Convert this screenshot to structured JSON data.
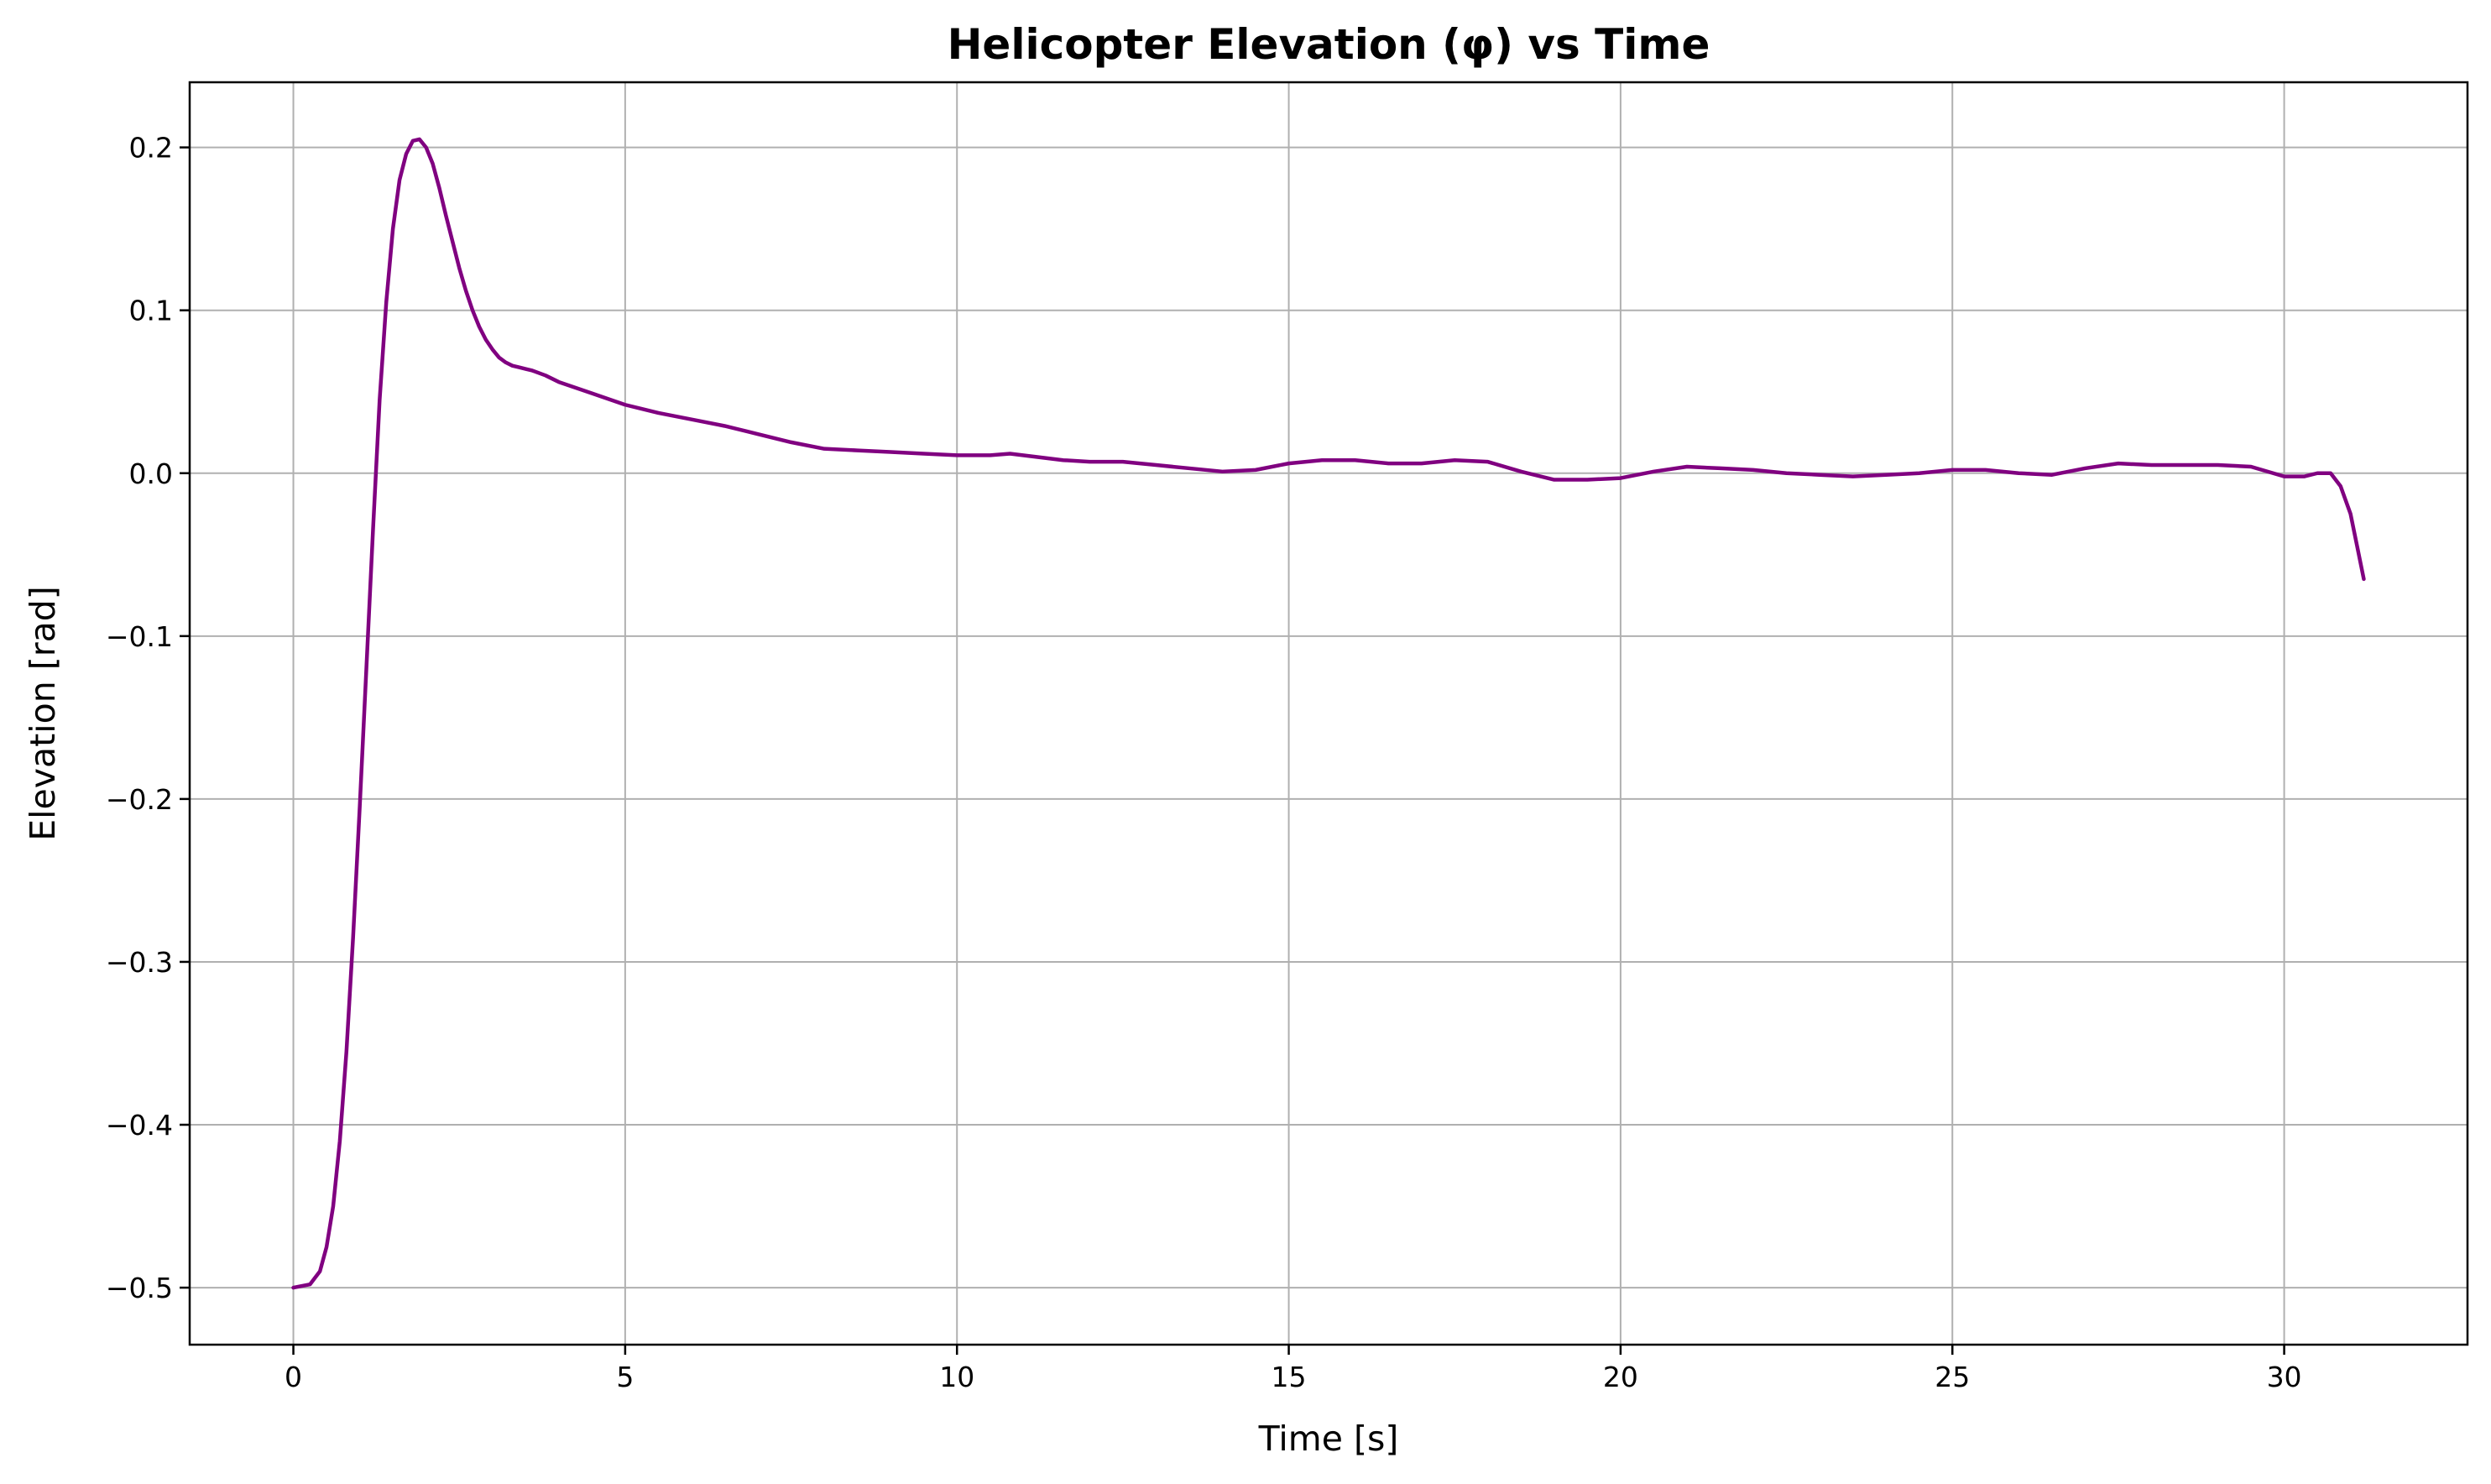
{
  "chart_data": {
    "type": "line",
    "title": "Helicopter Elevation (φ) vs Time",
    "xlabel": "Time [s]",
    "ylabel": "Elevation [rad]",
    "xlim": [
      -1.5625,
      32.7625
    ],
    "ylim": [
      -0.535,
      0.24
    ],
    "x_ticks": [
      0,
      5,
      10,
      15,
      20,
      25,
      30
    ],
    "x_tick_labels": [
      "0",
      "5",
      "10",
      "15",
      "20",
      "25",
      "30"
    ],
    "y_ticks": [
      0.2,
      0.1,
      0.0,
      -0.1,
      -0.2,
      -0.3,
      -0.4,
      -0.5
    ],
    "y_tick_labels": [
      "0.2",
      "0.1",
      "0.0",
      "−0.1",
      "−0.2",
      "−0.3",
      "−0.4",
      "−0.5"
    ],
    "grid": true,
    "colors": {
      "line": "#800080",
      "grid": "#b0b0b0",
      "axes": "#000000"
    },
    "series": [
      {
        "x": [
          0,
          0.25,
          0.4,
          0.5,
          0.6,
          0.7,
          0.8,
          0.9,
          1.0,
          1.1,
          1.2,
          1.3,
          1.4,
          1.5,
          1.6,
          1.7,
          1.8,
          1.9,
          2.0,
          2.1,
          2.2,
          2.3,
          2.4,
          2.5,
          2.6,
          2.7,
          2.8,
          2.9,
          3.0,
          3.1,
          3.2,
          3.3,
          3.4,
          3.5,
          3.6,
          3.8,
          4.0,
          4.5,
          5.0,
          5.5,
          6.0,
          6.5,
          7.0,
          7.5,
          8.0,
          8.5,
          9.0,
          9.5,
          10.0,
          10.5,
          10.8,
          11.2,
          11.6,
          12.0,
          12.5,
          13.0,
          13.5,
          14.0,
          14.5,
          15.0,
          15.5,
          16.0,
          16.5,
          17.0,
          17.5,
          18.0,
          18.5,
          19.0,
          19.5,
          20.0,
          20.5,
          21.0,
          21.5,
          22.0,
          22.5,
          23.0,
          23.5,
          24.0,
          24.5,
          25.0,
          25.5,
          26.0,
          26.5,
          27.0,
          27.5,
          28.0,
          28.5,
          29.0,
          29.5,
          30.0,
          30.3,
          30.5,
          30.7,
          30.85,
          31.0,
          31.1,
          31.2
        ],
        "y": [
          -0.5,
          -0.498,
          -0.49,
          -0.475,
          -0.45,
          -0.41,
          -0.355,
          -0.285,
          -0.205,
          -0.12,
          -0.035,
          0.045,
          0.105,
          0.15,
          0.18,
          0.196,
          0.204,
          0.205,
          0.2,
          0.19,
          0.175,
          0.158,
          0.142,
          0.126,
          0.112,
          0.1,
          0.09,
          0.082,
          0.076,
          0.071,
          0.068,
          0.066,
          0.065,
          0.064,
          0.063,
          0.06,
          0.056,
          0.049,
          0.042,
          0.037,
          0.033,
          0.029,
          0.024,
          0.019,
          0.015,
          0.014,
          0.013,
          0.012,
          0.011,
          0.011,
          0.012,
          0.01,
          0.008,
          0.007,
          0.007,
          0.005,
          0.003,
          0.001,
          0.002,
          0.006,
          0.008,
          0.008,
          0.006,
          0.006,
          0.008,
          0.007,
          0.001,
          -0.004,
          -0.004,
          -0.003,
          0.001,
          0.004,
          0.003,
          0.002,
          0.0,
          -0.001,
          -0.002,
          -0.001,
          0.0,
          0.002,
          0.002,
          0.0,
          -0.001,
          0.003,
          0.006,
          0.005,
          0.005,
          0.005,
          0.004,
          -0.002,
          -0.002,
          0.0,
          0.0,
          -0.008,
          -0.025,
          -0.045,
          -0.065
        ]
      }
    ]
  }
}
